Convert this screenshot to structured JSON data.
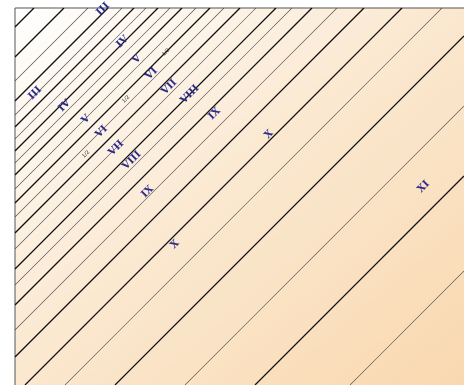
{
  "colors": {
    "gradient_start": "#ffffff",
    "gradient_mid": "#fbe9d2",
    "gradient_end": "#f9d8af",
    "thick_line": "#111111",
    "thin_line": "#444444",
    "label": "#2b2a8a",
    "border": "#555555"
  },
  "labels": {
    "top_row": [
      "III",
      "IV",
      "V",
      "VI",
      "VII",
      "VIII",
      "IX"
    ],
    "mid_row": [
      "III",
      "IV",
      "V",
      "VI",
      "VII",
      "VIII",
      "IX",
      "X"
    ],
    "lower_x": "X",
    "xi": "XI",
    "small_marks": [
      "1/2",
      "1/2",
      "1/2"
    ]
  }
}
